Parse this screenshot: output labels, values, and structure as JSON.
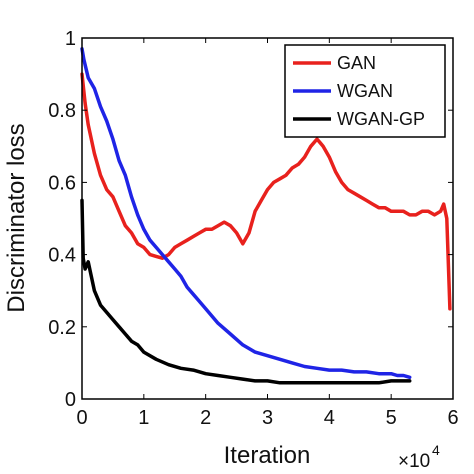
{
  "chart_data": {
    "type": "line",
    "xlabel": "Iteration",
    "ylabel": "Discriminator loss",
    "x_multiplier": {
      "base": "×10",
      "exponent": "4"
    },
    "xlim": [
      0,
      6
    ],
    "ylim": [
      0,
      1
    ],
    "x_ticks": [
      {
        "value": 0,
        "label": "0"
      },
      {
        "value": 1,
        "label": "1"
      },
      {
        "value": 2,
        "label": "2"
      },
      {
        "value": 3,
        "label": "3"
      },
      {
        "value": 4,
        "label": "4"
      },
      {
        "value": 5,
        "label": "5"
      },
      {
        "value": 6,
        "label": "6"
      }
    ],
    "y_ticks": [
      {
        "value": 0,
        "label": "0"
      },
      {
        "value": 0.2,
        "label": "0.2"
      },
      {
        "value": 0.4,
        "label": "0.4"
      },
      {
        "value": 0.6,
        "label": "0.6"
      },
      {
        "value": 0.8,
        "label": "0.8"
      },
      {
        "value": 1,
        "label": "1"
      }
    ],
    "grid": false,
    "legend_position": "top-right",
    "series": [
      {
        "name": "GAN",
        "color": "#e8211d",
        "x": [
          0,
          0.05,
          0.1,
          0.2,
          0.3,
          0.4,
          0.5,
          0.6,
          0.7,
          0.8,
          0.9,
          1.0,
          1.1,
          1.2,
          1.3,
          1.4,
          1.5,
          1.6,
          1.7,
          1.8,
          1.9,
          2.0,
          2.1,
          2.2,
          2.3,
          2.4,
          2.5,
          2.6,
          2.7,
          2.8,
          2.9,
          3.0,
          3.1,
          3.2,
          3.3,
          3.4,
          3.5,
          3.6,
          3.7,
          3.8,
          3.85,
          3.9,
          4.0,
          4.1,
          4.2,
          4.3,
          4.4,
          4.5,
          4.6,
          4.7,
          4.8,
          4.9,
          5.0,
          5.1,
          5.2,
          5.3,
          5.4,
          5.5,
          5.6,
          5.7,
          5.8,
          5.85,
          5.9,
          5.95
        ],
        "y": [
          0.9,
          0.82,
          0.76,
          0.68,
          0.62,
          0.58,
          0.56,
          0.52,
          0.48,
          0.46,
          0.43,
          0.42,
          0.4,
          0.395,
          0.39,
          0.4,
          0.42,
          0.43,
          0.44,
          0.45,
          0.46,
          0.47,
          0.47,
          0.48,
          0.49,
          0.48,
          0.46,
          0.43,
          0.46,
          0.52,
          0.55,
          0.58,
          0.6,
          0.61,
          0.62,
          0.64,
          0.65,
          0.67,
          0.7,
          0.72,
          0.71,
          0.7,
          0.67,
          0.63,
          0.6,
          0.58,
          0.57,
          0.56,
          0.55,
          0.54,
          0.53,
          0.53,
          0.52,
          0.52,
          0.52,
          0.51,
          0.51,
          0.52,
          0.52,
          0.51,
          0.52,
          0.54,
          0.5,
          0.25
        ]
      },
      {
        "name": "WGAN",
        "color": "#1f24e6",
        "x": [
          0,
          0.03,
          0.1,
          0.2,
          0.3,
          0.4,
          0.5,
          0.6,
          0.7,
          0.8,
          0.9,
          1.0,
          1.1,
          1.2,
          1.3,
          1.4,
          1.5,
          1.6,
          1.7,
          1.8,
          1.9,
          2.0,
          2.2,
          2.4,
          2.6,
          2.8,
          3.0,
          3.2,
          3.4,
          3.6,
          3.8,
          4.0,
          4.2,
          4.4,
          4.6,
          4.8,
          5.0,
          5.1,
          5.2,
          5.3
        ],
        "y": [
          0.97,
          0.94,
          0.89,
          0.86,
          0.81,
          0.77,
          0.72,
          0.66,
          0.62,
          0.56,
          0.51,
          0.47,
          0.44,
          0.42,
          0.4,
          0.38,
          0.36,
          0.34,
          0.31,
          0.29,
          0.27,
          0.25,
          0.21,
          0.18,
          0.15,
          0.13,
          0.12,
          0.11,
          0.1,
          0.09,
          0.085,
          0.08,
          0.08,
          0.075,
          0.075,
          0.07,
          0.07,
          0.065,
          0.065,
          0.06
        ]
      },
      {
        "name": "WGAN-GP",
        "color": "#000000",
        "x": [
          0,
          0.02,
          0.05,
          0.1,
          0.15,
          0.2,
          0.3,
          0.4,
          0.5,
          0.6,
          0.7,
          0.8,
          0.9,
          1.0,
          1.2,
          1.4,
          1.6,
          1.8,
          2.0,
          2.2,
          2.4,
          2.6,
          2.8,
          3.0,
          3.2,
          3.4,
          3.6,
          3.8,
          4.0,
          4.2,
          4.4,
          4.6,
          4.8,
          5.0,
          5.2,
          5.3
        ],
        "y": [
          0.55,
          0.39,
          0.36,
          0.38,
          0.34,
          0.3,
          0.26,
          0.24,
          0.22,
          0.2,
          0.18,
          0.16,
          0.15,
          0.13,
          0.11,
          0.095,
          0.085,
          0.08,
          0.07,
          0.065,
          0.06,
          0.055,
          0.05,
          0.05,
          0.045,
          0.045,
          0.045,
          0.045,
          0.045,
          0.045,
          0.045,
          0.045,
          0.045,
          0.05,
          0.05,
          0.05
        ]
      }
    ]
  }
}
